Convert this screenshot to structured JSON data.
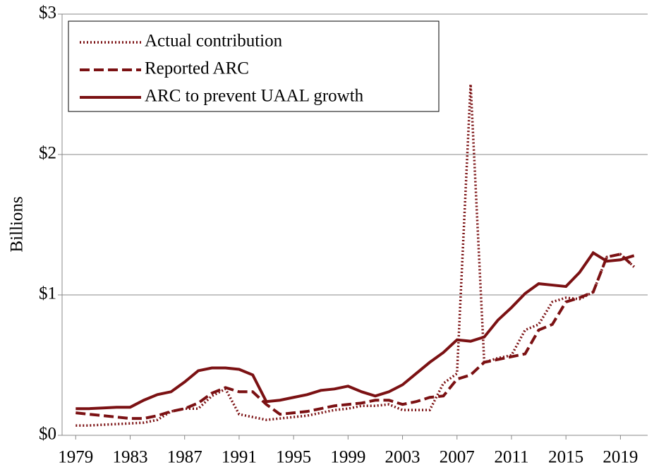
{
  "chart_data": {
    "type": "line",
    "ylabel": "Billions",
    "x": [
      1979,
      1980,
      1981,
      1982,
      1983,
      1984,
      1985,
      1986,
      1987,
      1988,
      1989,
      1990,
      1991,
      1992,
      1993,
      1994,
      1995,
      1996,
      1997,
      1998,
      1999,
      2000,
      2001,
      2002,
      2003,
      2004,
      2005,
      2006,
      2007,
      2008,
      2009,
      2010,
      2011,
      2012,
      2013,
      2014,
      2015,
      2016,
      2017,
      2018,
      2019,
      2020
    ],
    "series": [
      {
        "name": "Actual contribution",
        "color": "#7b1113",
        "style": "dotted",
        "values": [
          0.07,
          0.07,
          0.075,
          0.08,
          0.085,
          0.09,
          0.11,
          0.17,
          0.19,
          0.19,
          0.28,
          0.33,
          0.15,
          0.13,
          0.11,
          0.12,
          0.13,
          0.14,
          0.16,
          0.18,
          0.19,
          0.21,
          0.21,
          0.22,
          0.18,
          0.18,
          0.18,
          0.37,
          0.44,
          2.5,
          0.52,
          0.55,
          0.57,
          0.75,
          0.79,
          0.95,
          0.98,
          0.97,
          1.02,
          1.27,
          1.29,
          1.2
        ]
      },
      {
        "name": "Reported ARC",
        "color": "#7b1113",
        "style": "dashed",
        "values": [
          0.16,
          0.15,
          0.14,
          0.13,
          0.12,
          0.12,
          0.14,
          0.17,
          0.19,
          0.23,
          0.3,
          0.34,
          0.31,
          0.31,
          0.22,
          0.15,
          0.16,
          0.17,
          0.19,
          0.21,
          0.22,
          0.23,
          0.25,
          0.25,
          0.22,
          0.24,
          0.27,
          0.28,
          0.4,
          0.43,
          0.52,
          0.54,
          0.56,
          0.58,
          0.75,
          0.79,
          0.95,
          0.98,
          1.02,
          1.27,
          1.29,
          1.2
        ]
      },
      {
        "name": "ARC to prevent UAAL growth",
        "color": "#7b1113",
        "style": "solid",
        "values": [
          0.19,
          0.19,
          0.195,
          0.2,
          0.2,
          0.25,
          0.29,
          0.31,
          0.38,
          0.46,
          0.48,
          0.48,
          0.47,
          0.43,
          0.24,
          0.25,
          0.27,
          0.29,
          0.32,
          0.33,
          0.35,
          0.31,
          0.28,
          0.31,
          0.36,
          0.44,
          0.52,
          0.59,
          0.68,
          0.67,
          0.7,
          0.82,
          0.91,
          1.01,
          1.08,
          1.07,
          1.06,
          1.16,
          1.3,
          1.24,
          1.25,
          1.28
        ]
      }
    ],
    "xlim": [
      1978,
      2021
    ],
    "xticks": [
      1979,
      1983,
      1987,
      1991,
      1995,
      1999,
      2003,
      2007,
      2011,
      2015,
      2019
    ],
    "ylim": [
      0,
      3
    ],
    "yticks": [
      {
        "value": 0,
        "label": "$0"
      },
      {
        "value": 1,
        "label": "$1"
      },
      {
        "value": 2,
        "label": "$2"
      },
      {
        "value": 3,
        "label": "$3"
      }
    ],
    "grid": true,
    "legend": "upper-left"
  }
}
